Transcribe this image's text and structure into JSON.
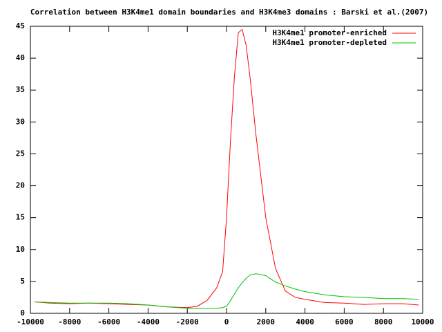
{
  "chart_data": {
    "type": "line",
    "title": "Correlation between H3K4me1 domain boundaries and H3K4me3 domains : Barski et al.(2007)",
    "x": [
      -9800,
      -9000,
      -8000,
      -7000,
      -6000,
      -5000,
      -4000,
      -3000,
      -2000,
      -1500,
      -1000,
      -500,
      -200,
      0,
      200,
      400,
      600,
      800,
      1000,
      1200,
      1500,
      2000,
      2500,
      3000,
      3500,
      4000,
      5000,
      6000,
      7000,
      8000,
      9000,
      9800
    ],
    "series": [
      {
        "name": "H3K4me1 promoter-enriched",
        "color": "#ff0000",
        "values": [
          1.8,
          1.6,
          1.5,
          1.6,
          1.5,
          1.4,
          1.3,
          1.0,
          0.9,
          1.1,
          2,
          4,
          6.5,
          15,
          27,
          37,
          44,
          44.5,
          42,
          37,
          28,
          15,
          7,
          3.5,
          2.5,
          2.2,
          1.7,
          1.6,
          1.4,
          1.5,
          1.5,
          1.3
        ]
      },
      {
        "name": "H3K4me1 promoter-depleted",
        "color": "#00c000",
        "values": [
          1.8,
          1.7,
          1.6,
          1.6,
          1.6,
          1.5,
          1.3,
          1.0,
          0.8,
          0.8,
          0.8,
          0.8,
          0.9,
          1.1,
          2,
          3,
          4,
          4.8,
          5.5,
          6,
          6.2,
          5.9,
          4.9,
          4.3,
          3.8,
          3.4,
          2.9,
          2.6,
          2.5,
          2.3,
          2.3,
          2.2
        ]
      }
    ],
    "xlim": [
      -10000,
      10000
    ],
    "xticks": [
      -10000,
      -8000,
      -6000,
      -4000,
      -2000,
      0,
      2000,
      4000,
      6000,
      8000,
      10000
    ],
    "ylim": [
      0,
      45
    ],
    "yticks": [
      0,
      5,
      10,
      15,
      20,
      25,
      30,
      35,
      40,
      45
    ],
    "legend": "top-right",
    "grid": false
  }
}
